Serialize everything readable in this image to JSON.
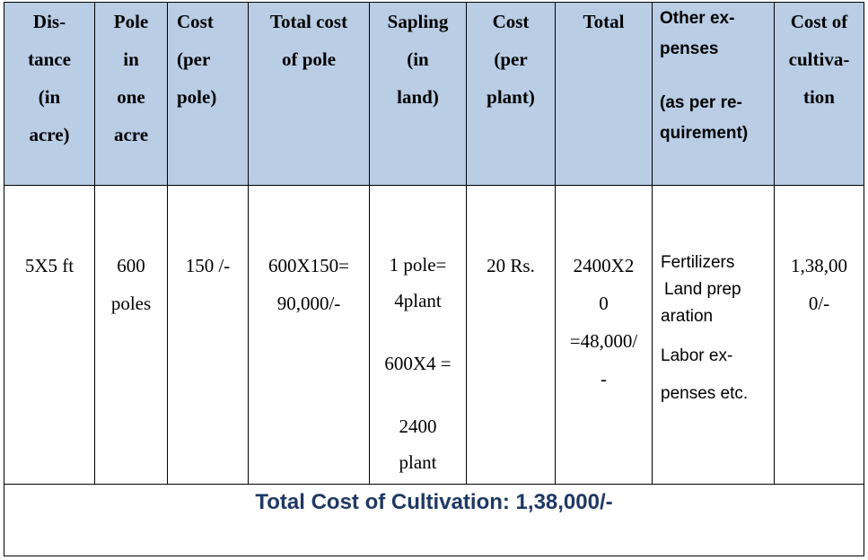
{
  "headers": [
    {
      "lines": [
        "Dis-",
        "tance",
        "(in",
        "acre)"
      ]
    },
    {
      "lines": [
        "Pole",
        "in",
        "one",
        "acre"
      ]
    },
    {
      "lines": [
        "Cost",
        "(per",
        "pole)"
      ]
    },
    {
      "lines": [
        "Total cost",
        "of pole"
      ]
    },
    {
      "lines": [
        "Sapling",
        "(in",
        "land)"
      ]
    },
    {
      "lines": [
        "Cost",
        "(per",
        "plant)"
      ]
    },
    {
      "lines": [
        "Total"
      ]
    },
    {
      "lines": [
        "Other ex-",
        "penses",
        "(as per re-",
        "quirement)"
      ]
    },
    {
      "lines": [
        "Cost of",
        "cultiva-",
        "tion"
      ]
    }
  ],
  "row": {
    "distance": "5X5 ft",
    "poles": [
      "600",
      "poles"
    ],
    "cost_per_pole": "150 /-",
    "total_cost_pole": [
      "600X150=",
      "90,000/-"
    ],
    "sapling": [
      "1 pole=",
      "4plant",
      "600X4 =",
      "2400",
      "plant"
    ],
    "cost_per_plant": "20 Rs.",
    "total": [
      "2400X2",
      "0",
      "=48,000/",
      "-"
    ],
    "other_expenses": [
      "Fertilizers",
      "Land prep",
      "aration",
      "Labor ex-",
      "penses etc."
    ],
    "cost_of_cultivation": [
      "1,38,00",
      "0/-"
    ]
  },
  "footer": {
    "total_text": "Total Cost of Cultivation: 1,38,000/-"
  },
  "colors": {
    "header_bg": "#b9cde5",
    "footer_text": "#1f3864"
  }
}
